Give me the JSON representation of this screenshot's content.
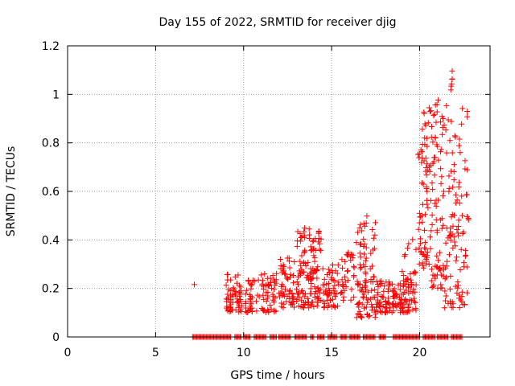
{
  "chart_data": {
    "type": "scatter",
    "title": "Day 155 of 2022, SRMTID for receiver djig",
    "xlabel": "GPS time / hours",
    "ylabel": "SRMTID / TECUs",
    "xlim": [
      0,
      24
    ],
    "ylim": [
      0,
      1.2
    ],
    "xticks": [
      0,
      5,
      10,
      15,
      20
    ],
    "xtick_labels": [
      "0",
      "5",
      "10",
      "15",
      "20"
    ],
    "yticks": [
      0,
      0.2,
      0.4,
      0.6,
      0.8,
      1,
      1.2
    ],
    "ytick_labels": [
      "0",
      "0.2",
      "0.4",
      "0.6",
      "0.8",
      "1",
      "1.2"
    ],
    "grid": true,
    "marker": "+",
    "color": "#ff0000",
    "series": [
      {
        "name": "SRMTID",
        "clusters": [
          {
            "x": [
              7.2,
              7.3
            ],
            "y": [
              0.21,
              0.23
            ],
            "n": 1
          },
          {
            "x": [
              9.0,
              9.9
            ],
            "y": [
              0.1,
              0.26
            ],
            "n": 60
          },
          {
            "x": [
              10.1,
              10.9
            ],
            "y": [
              0.1,
              0.24
            ],
            "n": 35
          },
          {
            "x": [
              11.0,
              11.9
            ],
            "y": [
              0.1,
              0.27
            ],
            "n": 50
          },
          {
            "x": [
              12.0,
              12.9
            ],
            "y": [
              0.12,
              0.33
            ],
            "n": 55
          },
          {
            "x": [
              13.0,
              14.4
            ],
            "y": [
              0.12,
              0.45
            ],
            "n": 130
          },
          {
            "x": [
              14.5,
              15.4
            ],
            "y": [
              0.12,
              0.3
            ],
            "n": 55
          },
          {
            "x": [
              15.5,
              16.3
            ],
            "y": [
              0.15,
              0.35
            ],
            "n": 35
          },
          {
            "x": [
              16.4,
              17.5
            ],
            "y": [
              0.08,
              0.5
            ],
            "n": 95
          },
          {
            "x": [
              17.5,
              19.8
            ],
            "y": [
              0.1,
              0.24
            ],
            "n": 140
          },
          {
            "x": [
              19.0,
              19.8
            ],
            "y": [
              0.24,
              0.42
            ],
            "n": 12
          },
          {
            "x": [
              19.9,
              20.6
            ],
            "y": [
              0.28,
              0.95
            ],
            "n": 70
          },
          {
            "x": [
              20.6,
              21.4
            ],
            "y": [
              0.2,
              0.98
            ],
            "n": 80
          },
          {
            "x": [
              21.4,
              22.8
            ],
            "y": [
              0.12,
              0.97
            ],
            "n": 110
          },
          {
            "x": [
              21.7,
              21.9
            ],
            "y": [
              1.0,
              1.1
            ],
            "n": 6
          }
        ],
        "zero_ranges": [
          [
            7.1,
            9.3
          ],
          [
            9.5,
            9.9
          ],
          [
            10.0,
            10.4
          ],
          [
            10.6,
            11.3
          ],
          [
            11.5,
            11.9
          ],
          [
            12.0,
            12.7
          ],
          [
            12.9,
            13.6
          ],
          [
            13.8,
            14.0
          ],
          [
            14.2,
            14.6
          ],
          [
            14.8,
            15.3
          ],
          [
            15.5,
            15.9
          ],
          [
            16.0,
            16.6
          ],
          [
            16.8,
            17.5
          ],
          [
            17.7,
            18.1
          ],
          [
            18.5,
            20.0
          ],
          [
            20.2,
            20.9
          ],
          [
            21.0,
            21.6
          ],
          [
            21.8,
            22.4
          ]
        ]
      }
    ]
  }
}
